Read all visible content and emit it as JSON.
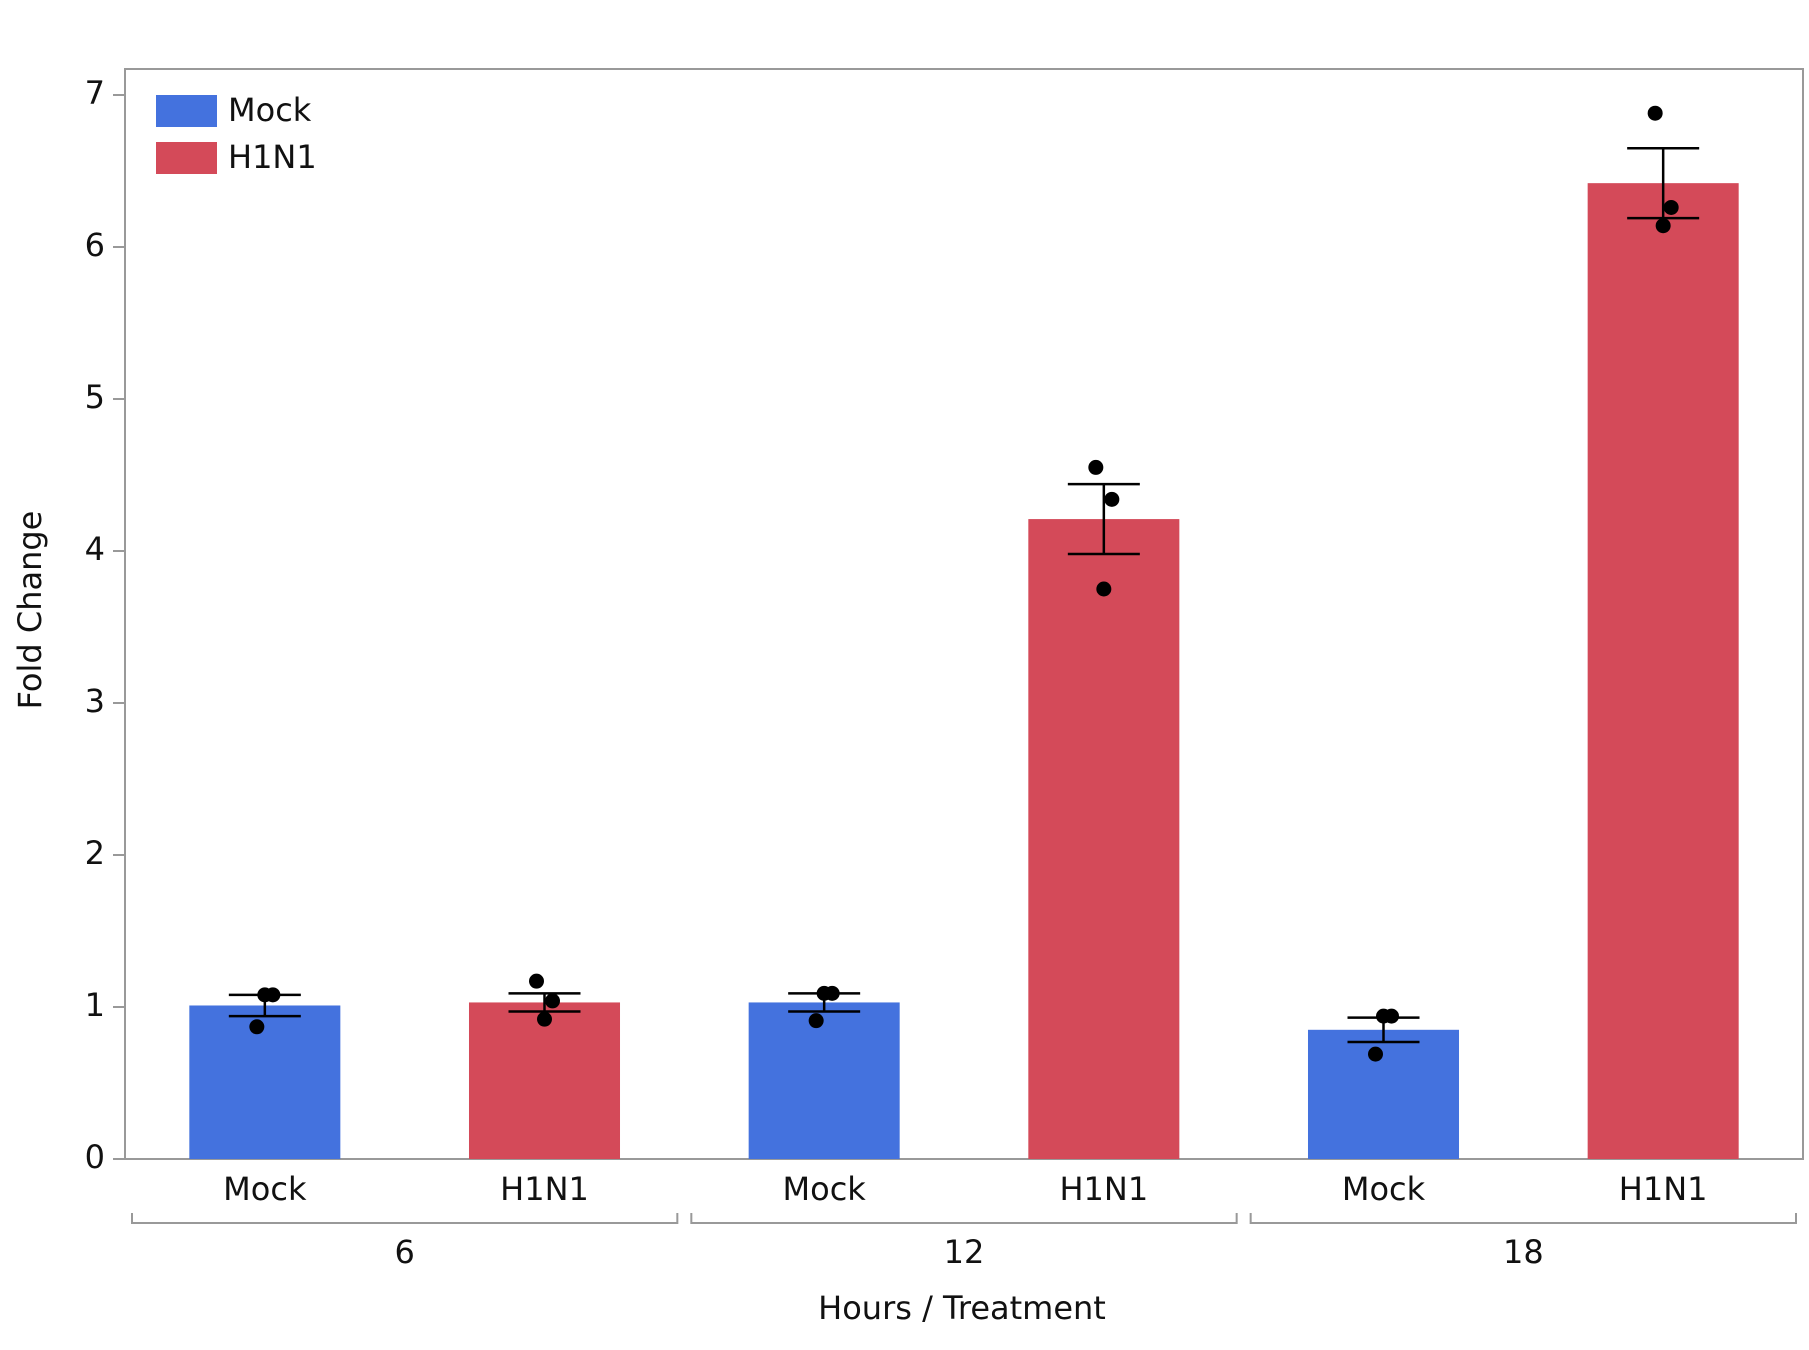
{
  "chart_data": {
    "type": "bar",
    "x_label": "Hours / Treatment",
    "y_label": "Fold Change",
    "categories": [
      "6",
      "12",
      "18"
    ],
    "series": [
      {
        "name": "Mock",
        "color": "#4472de",
        "values": [
          1.01,
          1.03,
          0.85
        ],
        "errors": [
          0.07,
          0.06,
          0.08
        ],
        "points": [
          [
            0.87,
            1.08,
            1.08
          ],
          [
            0.91,
            1.09,
            1.09
          ],
          [
            0.69,
            0.94,
            0.94
          ]
        ]
      },
      {
        "name": "H1N1",
        "color": "#d44a59",
        "values": [
          1.03,
          4.21,
          6.42
        ],
        "errors": [
          0.06,
          0.23,
          0.23
        ],
        "points": [
          [
            1.17,
            1.04,
            0.92
          ],
          [
            4.55,
            4.34,
            3.75
          ],
          [
            6.88,
            6.26,
            6.14
          ]
        ]
      }
    ],
    "ylim": [
      0,
      7
    ],
    "yticks": [
      0,
      1,
      2,
      3,
      4,
      5,
      6,
      7
    ],
    "grid": false,
    "legend": "upper left"
  }
}
